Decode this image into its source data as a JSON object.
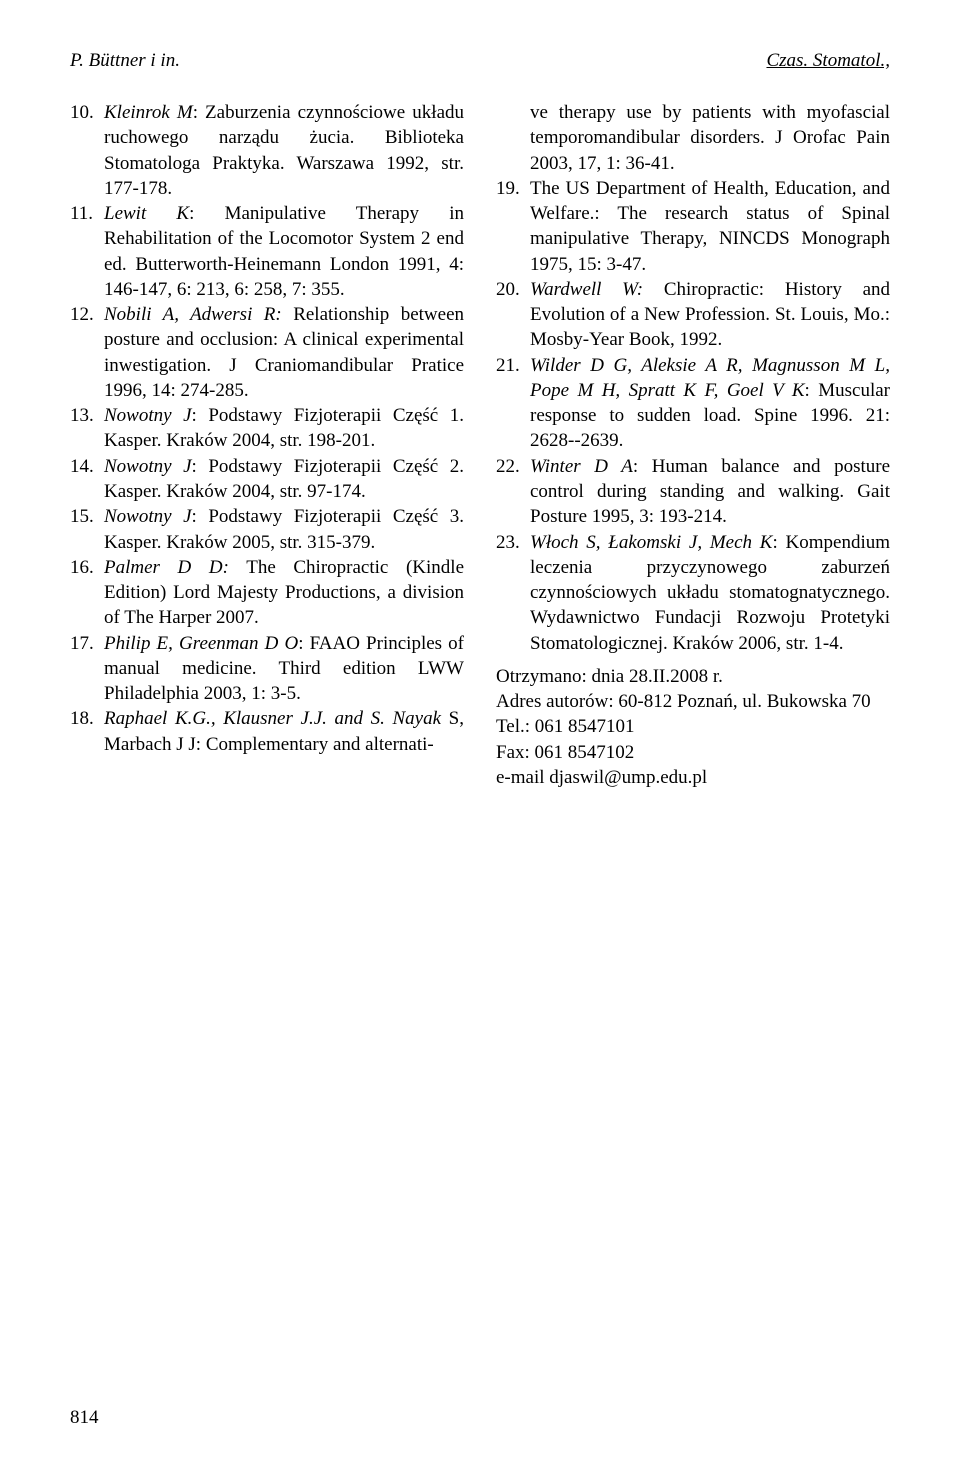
{
  "header": {
    "left": "P. Büttner i in.",
    "right": "Czas. Stomatol.,"
  },
  "leftRefs": [
    {
      "num": "10.",
      "author": "Kleinrok M",
      "after": ": Zaburzenia czynnościowe układu ruchowego narządu żucia. Biblioteka Stomatologa Praktyka. Warszawa 1992, str. 177-178."
    },
    {
      "num": "11.",
      "author": "Lewit K",
      "after": ": Manipulative Therapy in Rehabilitation of the Locomotor System 2 end ed. Butterworth-Heinemann London 1991, 4: 146-147, 6: 213, 6: 258, 7: 355."
    },
    {
      "num": "12.",
      "author": "Nobili A, Adwersi R:",
      "after": " Relationship between posture and occlusion: A clinical experimental inwestigation. J Craniomandibular Pratice 1996, 14: 274-285."
    },
    {
      "num": "13.",
      "author": "Nowotny J",
      "after": ": Podstawy Fizjoterapii Część 1. Kasper. Kraków 2004, str. 198-201."
    },
    {
      "num": "14.",
      "author": "Nowotny J",
      "after": ": Podstawy Fizjoterapii Część 2. Kasper. Kraków 2004, str. 97-174."
    },
    {
      "num": "15.",
      "author": "Nowotny J",
      "after": ": Podstawy Fizjoterapii Część 3. Kasper. Kraków 2005, str. 315-379."
    },
    {
      "num": "16.",
      "author": "Palmer D D:",
      "after": " The Chiropractic (Kindle Edition) Lord Majesty Productions, a division of The Harper 2007."
    },
    {
      "num": "17.",
      "author": "Philip E, Greenman D O",
      "after": ": FAAO Principles of manual medicine. Third edition LWW Philadelphia 2003, 1: 3-5."
    },
    {
      "num": "18.",
      "author": "Raphael K.G., Klausner J.J. and S. Nayak",
      "after": " S, Marbach J J: Complementary and alternati-"
    }
  ],
  "rightContinuation": "ve therapy use by patients with myofascial temporomandibular disorders. J Orofac Pain 2003, 17, 1: 36-41.",
  "rightRefs": [
    {
      "num": "19.",
      "plain1": "The US Department of Health, Education, and Welfare.: The research status of Spinal manipulative Therapy, NINCDS Monograph 1975, 15: 3-47."
    },
    {
      "num": "20.",
      "author": "Wardwell W:",
      "after": " Chiropractic: History and Evolution of a New Profession. St. Louis, Mo.: Mosby-Year Book, 1992."
    },
    {
      "num": "21.",
      "author": "Wilder D G, Aleksie A R, Magnusson M L, Pope M H, Spratt K F, Goel V K",
      "after": ": Muscular response to sudden load. Spine 1996. 21: 2628--2639."
    },
    {
      "num": "22.",
      "author": "Winter D A",
      "after": ": Human balance and posture control during standing and walking. Gait Posture 1995, 3: 193-214."
    },
    {
      "num": "23.",
      "author": "Włoch S, Łakomski J, Mech K",
      "after": ": Kompendium leczenia przyczynowego zaburzeń czynnościowych układu stomatognatycznego. Wydawnictwo Fundacji Rozwoju Protetyki Stomatologicznej. Kraków 2006, str. 1-4."
    }
  ],
  "meta": {
    "received": "Otrzymano: dnia 28.II.2008 r.",
    "address": "Adres autorów: 60-812 Poznań, ul. Bukowska 70",
    "tel": "Tel.: 061 8547101",
    "fax": "Fax: 061 8547102",
    "email": "e-mail djaswil@ump.edu.pl"
  },
  "pageNumber": "814"
}
